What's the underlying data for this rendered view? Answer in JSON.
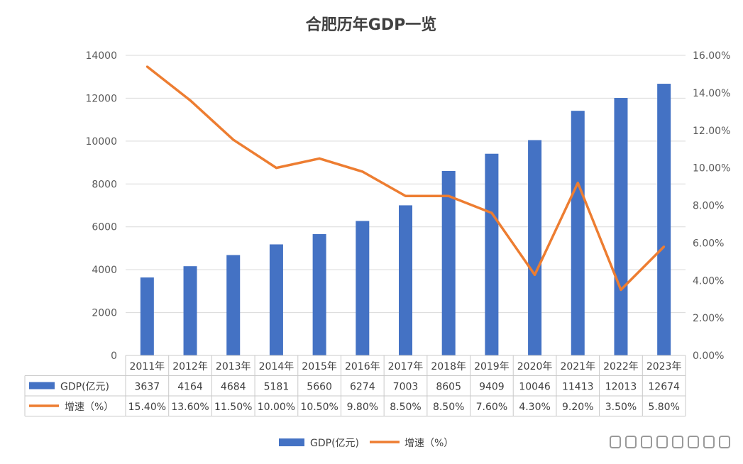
{
  "chart_data": {
    "type": "bar",
    "title": "合肥历年GDP一览",
    "categories": [
      "2011年",
      "2012年",
      "2013年",
      "2014年",
      "2015年",
      "2016年",
      "2017年",
      "2018年",
      "2019年",
      "2020年",
      "2021年",
      "2022年",
      "2023年"
    ],
    "series": [
      {
        "name": "GDP(亿元)",
        "type": "bar",
        "axis": "left",
        "color": "#4472C4",
        "values": [
          3637,
          4164,
          4684,
          5181,
          5660,
          6274,
          7003,
          8605,
          9409,
          10046,
          11413,
          12013,
          12674
        ]
      },
      {
        "name": "增速（%）",
        "type": "line",
        "axis": "right",
        "color": "#ED7D31",
        "values": [
          15.4,
          13.6,
          11.5,
          10.0,
          10.5,
          9.8,
          8.5,
          8.5,
          7.6,
          4.3,
          9.2,
          3.5,
          5.8
        ],
        "labels": [
          "15.40%",
          "13.60%",
          "11.50%",
          "10.00%",
          "10.50%",
          "9.80%",
          "8.50%",
          "8.50%",
          "7.60%",
          "4.30%",
          "9.20%",
          "3.50%",
          "5.80%"
        ]
      }
    ],
    "y_left": {
      "min": 0,
      "max": 14000,
      "ticks": [
        "0",
        "2000",
        "4000",
        "6000",
        "8000",
        "10000",
        "12000",
        "14000"
      ]
    },
    "y_right": {
      "min": 0,
      "max": 16,
      "ticks": [
        "0.00%",
        "2.00%",
        "4.00%",
        "6.00%",
        "8.00%",
        "10.00%",
        "12.00%",
        "14.00%",
        "16.00%"
      ]
    },
    "grid": true,
    "data_table": true,
    "legend_position": "bottom"
  }
}
